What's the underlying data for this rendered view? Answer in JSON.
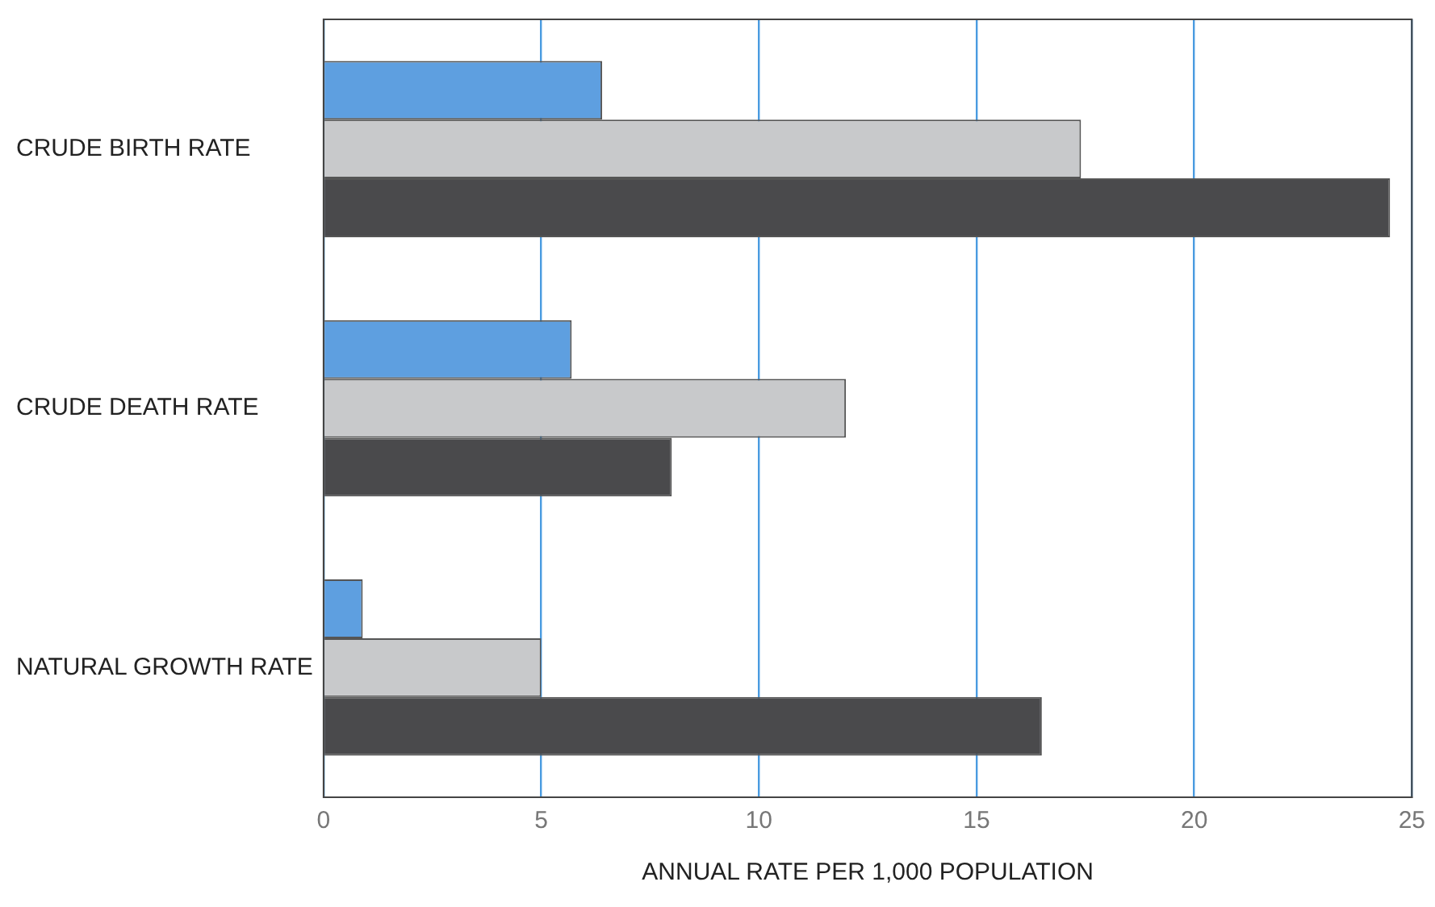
{
  "chart_data": {
    "type": "bar",
    "orientation": "horizontal",
    "xlabel": "ANNUAL RATE PER 1,000 POPULATION",
    "categories": [
      "CRUDE BIRTH RATE",
      "CRUDE DEATH RATE",
      "NATURAL GROWTH RATE"
    ],
    "series": [
      {
        "color": "#5e9fe0",
        "values": [
          6.4,
          5.7,
          0.9
        ]
      },
      {
        "color": "#c8c9cb",
        "values": [
          17.4,
          12.0,
          5.0
        ]
      },
      {
        "color": "#4a4a4c",
        "values": [
          24.5,
          8.0,
          16.5
        ]
      }
    ],
    "xlim": [
      0,
      25
    ],
    "xticks": [
      0,
      5,
      10,
      15,
      20,
      25
    ],
    "grid": "x",
    "legend": false
  }
}
